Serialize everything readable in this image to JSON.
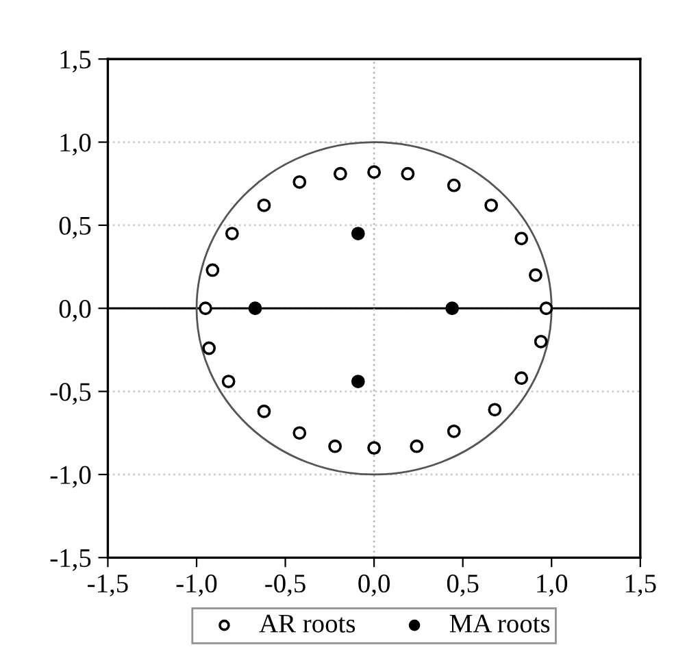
{
  "chart_data": {
    "type": "scatter",
    "series": [
      {
        "name": "AR roots",
        "marker": "circle",
        "color": "#ffffff",
        "x": [
          -0.95,
          -0.91,
          -0.8,
          -0.62,
          -0.42,
          -0.19,
          0.0,
          0.19,
          0.45,
          0.66,
          0.83,
          0.91,
          0.97,
          0.94,
          0.83,
          0.68,
          0.45,
          0.24,
          0.0,
          -0.22,
          -0.42,
          -0.62,
          -0.82,
          -0.93
        ],
        "values": [
          0.0,
          0.23,
          0.45,
          0.62,
          0.76,
          0.81,
          0.82,
          0.81,
          0.74,
          0.62,
          0.42,
          0.2,
          0.0,
          -0.2,
          -0.42,
          -0.61,
          -0.74,
          -0.83,
          -0.84,
          -0.83,
          -0.75,
          -0.62,
          -0.44,
          -0.24
        ]
      },
      {
        "name": "MA roots",
        "marker": "circle",
        "color": "#000000",
        "x": [
          -0.67,
          0.44,
          -0.09,
          -0.09
        ],
        "values": [
          0.0,
          0.0,
          0.45,
          -0.44
        ]
      }
    ],
    "xlim": [
      -1.5,
      1.5
    ],
    "ylim": [
      -1.5,
      1.5
    ],
    "xticks": [
      {
        "value": -1.5,
        "label": "-1,5"
      },
      {
        "value": -1.0,
        "label": "-1,0"
      },
      {
        "value": -0.5,
        "label": "-0,5"
      },
      {
        "value": 0.0,
        "label": "0,0"
      },
      {
        "value": 0.5,
        "label": "0,5"
      },
      {
        "value": 1.0,
        "label": "1,0"
      },
      {
        "value": 1.5,
        "label": "1,5"
      }
    ],
    "yticks": [
      {
        "value": -1.5,
        "label": "-1,5"
      },
      {
        "value": -1.0,
        "label": "-1,0"
      },
      {
        "value": -0.5,
        "label": "-0,5"
      },
      {
        "value": 0.0,
        "label": "0,0"
      },
      {
        "value": 0.5,
        "label": "0,5"
      },
      {
        "value": 1.0,
        "label": "1,0"
      },
      {
        "value": 1.5,
        "label": "1,5"
      }
    ],
    "grid": "y",
    "ref_lines": [
      {
        "axis": "y",
        "value": 0,
        "color": "#000000",
        "line_style": "solid"
      },
      {
        "axis": "x",
        "value": 0,
        "color": "#bbbbbb",
        "line_style": "dotted"
      }
    ],
    "legend": "bottom"
  }
}
